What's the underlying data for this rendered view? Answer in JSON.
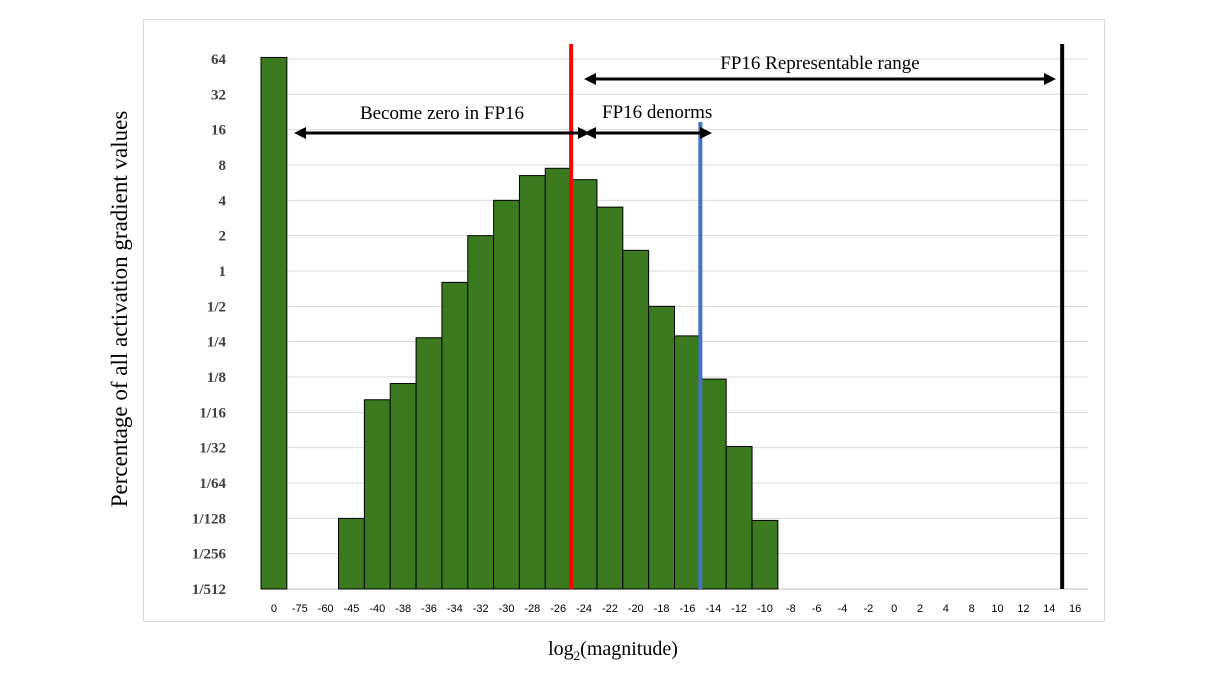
{
  "chart_data": {
    "type": "bar",
    "title": "",
    "xlabel": "log2(magnitude)",
    "xlabel_base": "log",
    "xlabel_sub": "2",
    "xlabel_rest": "(magnitude)",
    "ylabel": "Percentage of all activation gradient values",
    "yscale": "log2",
    "ylim": [
      "1/512",
      "64"
    ],
    "yticks": [
      "1/512",
      "1/256",
      "1/128",
      "1/64",
      "1/32",
      "1/16",
      "1/8",
      "1/4",
      "1/2",
      "1",
      "2",
      "4",
      "8",
      "16",
      "32",
      "64"
    ],
    "xticks": [
      "0",
      "-75",
      "-60",
      "-45",
      "-40",
      "-38",
      "-36",
      "-34",
      "-32",
      "-30",
      "-28",
      "-26",
      "-24",
      "-22",
      "-20",
      "-18",
      "-16",
      "-14",
      "-12",
      "-10",
      "-8",
      "-6",
      "-4",
      "-2",
      "0",
      "2",
      "4",
      "8",
      "10",
      "12",
      "14",
      "16"
    ],
    "values": [
      66,
      0,
      null,
      0.0078,
      0.08,
      0.11,
      0.27,
      0.8,
      2,
      4,
      6.5,
      7.5,
      6,
      3.5,
      1.5,
      0.5,
      0.28,
      0.12,
      0.032,
      0.0075,
      null,
      null,
      null,
      null,
      null,
      null,
      null,
      null,
      null,
      null,
      null,
      null
    ],
    "grid": true,
    "bar_color": "#3b7a1e",
    "bar_edge_color": "#000000",
    "annotations": [
      {
        "label": "Become zero in FP16",
        "from": "0",
        "to": "-24"
      },
      {
        "label": "FP16 denorms",
        "from": "-24",
        "to": "-14"
      },
      {
        "label": "FP16 Representable range",
        "from": "-24",
        "to": "16"
      }
    ],
    "reference_lines": [
      {
        "at": "-24",
        "color": "#ff0000"
      },
      {
        "at": "-14",
        "color": "#4472c4"
      },
      {
        "at": "16",
        "color": "#000000"
      }
    ]
  }
}
